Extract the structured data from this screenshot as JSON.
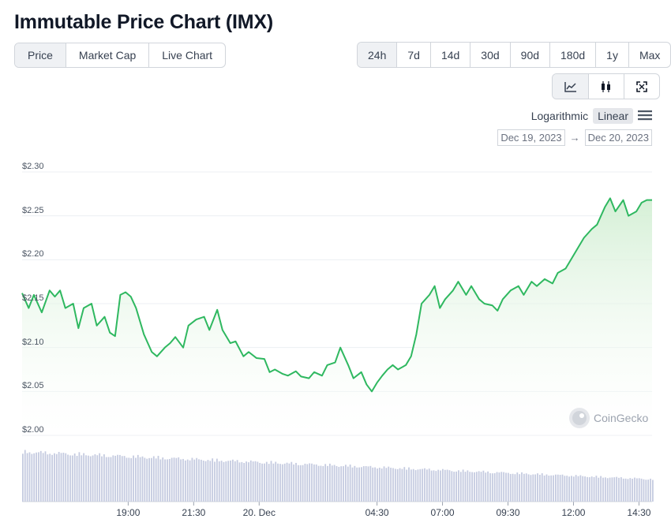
{
  "title": "Immutable Price Chart (IMX)",
  "view_tabs": [
    "Price",
    "Market Cap",
    "Live Chart"
  ],
  "active_view": "Price",
  "range_tabs": [
    "24h",
    "7d",
    "14d",
    "30d",
    "90d",
    "180d",
    "1y",
    "Max"
  ],
  "active_range": "24h",
  "chart_types": [
    "line-chart-icon",
    "candlestick-icon",
    "fullscreen-icon"
  ],
  "active_chart_type": "line-chart-icon",
  "scale": {
    "log_label": "Logarithmic",
    "linear_label": "Linear",
    "active": "Linear",
    "menu_icon": "hamburger-menu-icon"
  },
  "date_range": {
    "from": "Dec 19, 2023",
    "arrow": "→",
    "to": "Dec 20, 2023"
  },
  "watermark": "CoinGecko",
  "colors": {
    "line": "#2fb860",
    "fill_top": "#d3efd4",
    "volume": "#c5cbe0",
    "grid": "#eceff3"
  },
  "chart_data": {
    "type": "area",
    "ylim": [
      2.0,
      2.3
    ],
    "y_ticks": [
      2.0,
      2.05,
      2.1,
      2.15,
      2.2,
      2.25,
      2.3
    ],
    "y_tick_labels": [
      "$2.00",
      "$2.05",
      "$2.10",
      "$2.15",
      "$2.20",
      "$2.25",
      "$2.30"
    ],
    "x_tick_labels": [
      "19:00",
      "21:30",
      "20. Dec",
      "04:30",
      "07:00",
      "09:30",
      "12:00",
      "14:30"
    ],
    "x_tick_hours": [
      19.0,
      21.5,
      24.0,
      28.5,
      31.0,
      33.5,
      36.0,
      38.5
    ],
    "x_range_hours": [
      14.95,
      39.0
    ],
    "grid": true,
    "series": [
      {
        "x_hours": [
          14.95,
          15.2,
          15.4,
          15.7,
          16.0,
          16.2,
          16.4,
          16.6,
          16.9,
          17.1,
          17.3,
          17.6,
          17.8,
          18.1,
          18.3,
          18.5,
          18.7,
          18.9,
          19.1,
          19.3,
          19.6,
          19.9,
          20.1,
          20.4,
          20.6,
          20.8,
          21.1,
          21.3,
          21.6,
          21.9,
          22.1,
          22.4,
          22.6,
          22.9,
          23.1,
          23.4,
          23.6,
          23.9,
          24.2,
          24.4,
          24.6,
          24.9,
          25.1,
          25.4,
          25.6,
          25.9,
          26.1,
          26.4,
          26.6,
          26.9,
          27.1,
          27.4,
          27.6,
          27.9,
          28.1,
          28.3,
          28.5,
          28.7,
          28.9,
          29.1,
          29.3,
          29.6,
          29.8,
          30.0,
          30.2,
          30.5,
          30.7,
          30.9,
          31.1,
          31.4,
          31.6,
          31.9,
          32.1,
          32.4,
          32.6,
          32.9,
          33.1,
          33.3,
          33.6,
          33.9,
          34.1,
          34.4,
          34.6,
          34.9,
          35.2,
          35.4,
          35.7,
          35.9,
          36.2,
          36.4,
          36.7,
          36.9,
          37.2,
          37.4,
          37.6,
          37.9,
          38.1,
          38.4,
          38.6,
          38.8,
          39.0
        ],
        "values": [
          2.162,
          2.145,
          2.16,
          2.14,
          2.165,
          2.158,
          2.165,
          2.145,
          2.15,
          2.122,
          2.145,
          2.15,
          2.125,
          2.135,
          2.117,
          2.113,
          2.16,
          2.163,
          2.158,
          2.145,
          2.115,
          2.095,
          2.09,
          2.1,
          2.105,
          2.112,
          2.1,
          2.125,
          2.132,
          2.135,
          2.12,
          2.143,
          2.12,
          2.105,
          2.107,
          2.09,
          2.095,
          2.088,
          2.087,
          2.072,
          2.075,
          2.07,
          2.068,
          2.073,
          2.067,
          2.065,
          2.072,
          2.068,
          2.08,
          2.083,
          2.1,
          2.08,
          2.065,
          2.072,
          2.058,
          2.05,
          2.06,
          2.068,
          2.075,
          2.08,
          2.075,
          2.08,
          2.09,
          2.115,
          2.15,
          2.16,
          2.17,
          2.145,
          2.155,
          2.165,
          2.175,
          2.16,
          2.17,
          2.155,
          2.15,
          2.148,
          2.142,
          2.155,
          2.165,
          2.17,
          2.16,
          2.175,
          2.17,
          2.178,
          2.173,
          2.185,
          2.19,
          2.2,
          2.215,
          2.225,
          2.235,
          2.24,
          2.26,
          2.27,
          2.255,
          2.268,
          2.25,
          2.255,
          2.265,
          2.268,
          2.268
        ]
      }
    ],
    "volume_trend": [
      1.0,
      0.45
    ]
  }
}
